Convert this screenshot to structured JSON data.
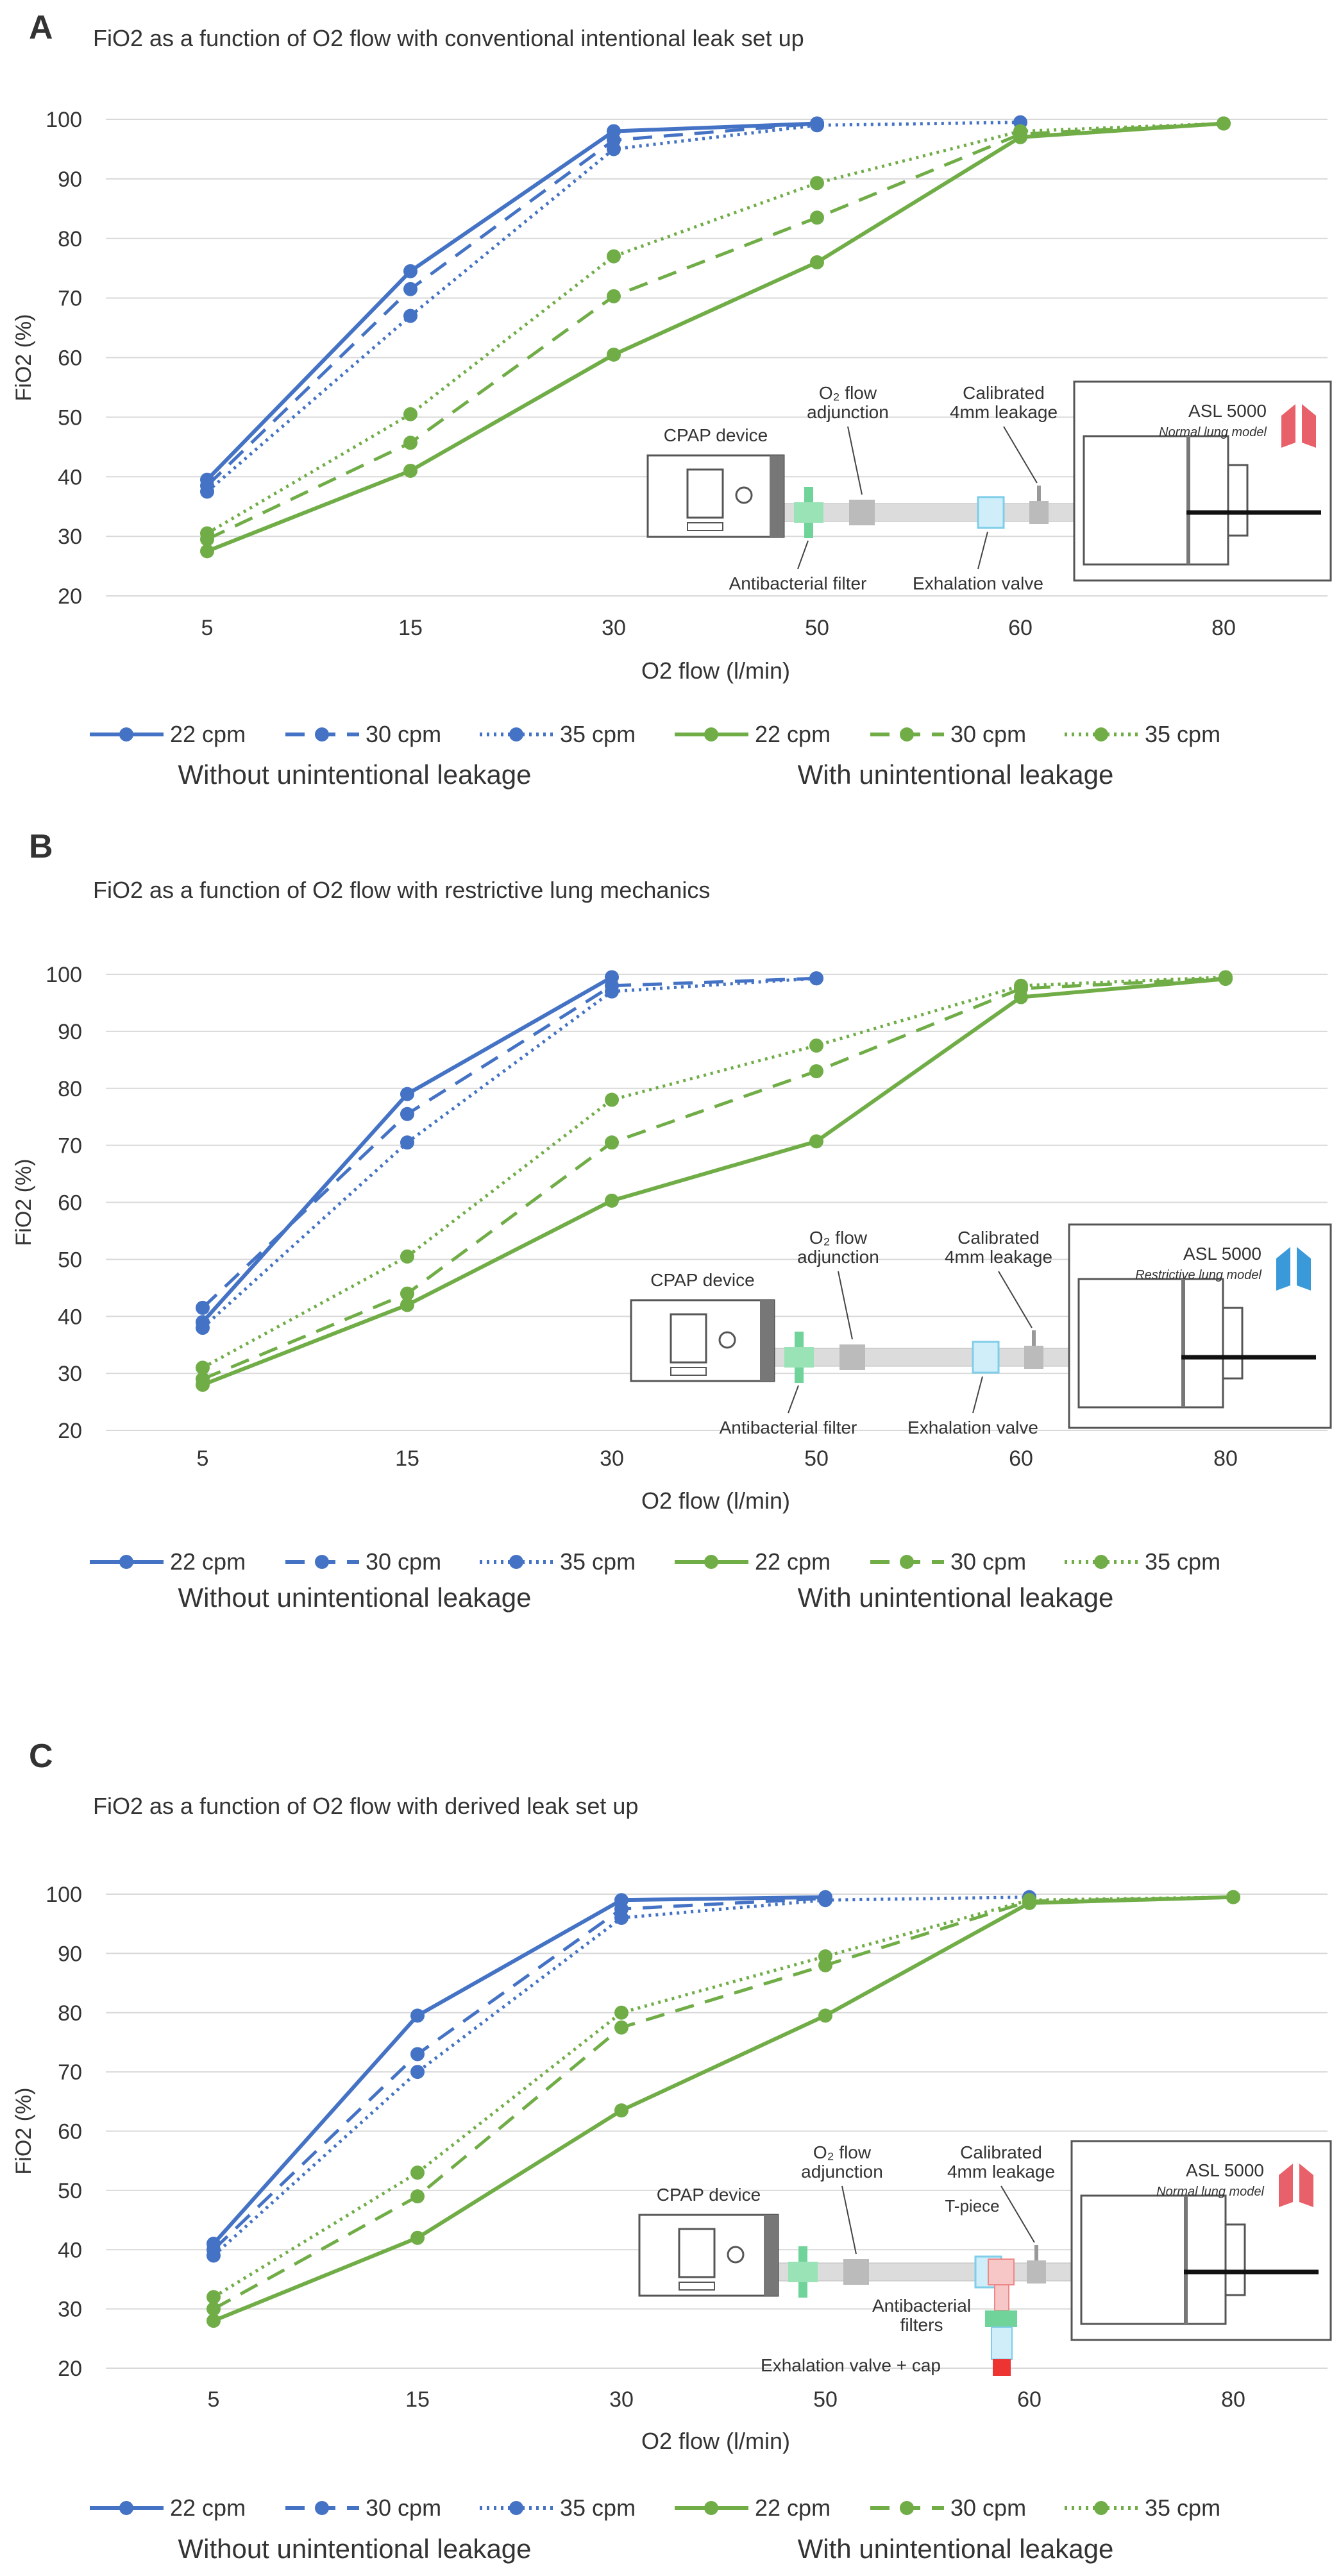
{
  "colors": {
    "without_leak": "#4472C4",
    "with_leak": "#70AD47",
    "grid": "#d9d9d9",
    "without_label": "#4a72b8",
    "with_label": "#70ad47"
  },
  "chart_data": [
    {
      "type": "line",
      "panel_label": "A",
      "title": "FiO2 as a function of O2 flow with conventional intentional leak set up",
      "xlabel": "O2 flow (l/min)",
      "ylabel": "FiO2 (%)",
      "categories": [
        "5",
        "15",
        "30",
        "50",
        "60",
        "80"
      ],
      "ylim": [
        20,
        100
      ],
      "yticks": [
        "20",
        "30",
        "40",
        "50",
        "60",
        "70",
        "80",
        "90",
        "100"
      ],
      "grid": true,
      "legend": "bottom",
      "series": [
        {
          "name": "22 cpm",
          "group": "without",
          "style": "solid",
          "values": [
            39.5,
            74.5,
            98,
            99.3,
            null,
            null
          ]
        },
        {
          "name": "30 cpm",
          "group": "without",
          "style": "dashed",
          "values": [
            38.5,
            71.5,
            96.5,
            99.3,
            null,
            null
          ]
        },
        {
          "name": "35 cpm",
          "group": "without",
          "style": "dotted",
          "values": [
            37.5,
            67,
            95,
            99,
            99.5,
            null
          ]
        },
        {
          "name": "22 cpm",
          "group": "with",
          "style": "solid",
          "values": [
            27.5,
            41,
            60.5,
            76,
            97,
            99.3
          ]
        },
        {
          "name": "30 cpm",
          "group": "with",
          "style": "dashed",
          "values": [
            29.5,
            45.7,
            70.3,
            83.5,
            97.5,
            99.3
          ]
        },
        {
          "name": "35 cpm",
          "group": "with",
          "style": "dotted",
          "values": [
            30.5,
            50.5,
            77,
            89.3,
            98,
            99.3
          ]
        }
      ],
      "groups": {
        "without": "Without unintentional leakage",
        "with": "With unintentional leakage"
      },
      "diagram": {
        "cpap": "CPAP device",
        "o2_line1": "O₂ flow",
        "o2_line2": "adjunction",
        "leak_line1": "Calibrated",
        "leak_line2": "4mm leakage",
        "filter": "Antibacterial filter",
        "valve": "Exhalation valve",
        "asl": "ASL 5000",
        "model": "Normal lung model",
        "lung_color": "#e8606a"
      }
    },
    {
      "type": "line",
      "panel_label": "B",
      "title": "FiO2 as a function of O2 flow with restrictive lung mechanics",
      "xlabel": "O2 flow (l/min)",
      "ylabel": "FiO2 (%)",
      "categories": [
        "5",
        "15",
        "30",
        "50",
        "60",
        "80"
      ],
      "ylim": [
        20,
        100
      ],
      "yticks": [
        "20",
        "30",
        "40",
        "50",
        "60",
        "70",
        "80",
        "90",
        "100"
      ],
      "grid": true,
      "legend": "bottom",
      "series": [
        {
          "name": "22 cpm",
          "group": "without",
          "style": "solid",
          "values": [
            39,
            79,
            99.5,
            null,
            null,
            null
          ]
        },
        {
          "name": "30 cpm",
          "group": "without",
          "style": "dashed",
          "values": [
            41.5,
            75.5,
            98,
            99.3,
            null,
            null
          ]
        },
        {
          "name": "35 cpm",
          "group": "without",
          "style": "dotted",
          "values": [
            38,
            70.5,
            97,
            99.3,
            null,
            null
          ]
        },
        {
          "name": "22 cpm",
          "group": "with",
          "style": "solid",
          "values": [
            28,
            42,
            60.3,
            70.7,
            96,
            99.2
          ]
        },
        {
          "name": "30 cpm",
          "group": "with",
          "style": "dashed",
          "values": [
            29,
            44,
            70.5,
            83,
            97.5,
            99.3
          ]
        },
        {
          "name": "35 cpm",
          "group": "with",
          "style": "dotted",
          "values": [
            31,
            50.5,
            78,
            87.5,
            98,
            99.5
          ]
        }
      ],
      "groups": {
        "without": "Without unintentional leakage",
        "with": "With unintentional leakage"
      },
      "diagram": {
        "cpap": "CPAP device",
        "o2_line1": "O₂ flow",
        "o2_line2": "adjunction",
        "leak_line1": "Calibrated",
        "leak_line2": "4mm leakage",
        "filter": "Antibacterial filter",
        "valve": "Exhalation valve",
        "asl": "ASL 5000",
        "model": "Restrictive lung model",
        "lung_color": "#3a9ad9"
      }
    },
    {
      "type": "line",
      "panel_label": "C",
      "title": "FiO2 as a function of O2 flow with derived leak set up",
      "xlabel": "O2 flow (l/min)",
      "ylabel": "FiO2 (%)",
      "categories": [
        "5",
        "15",
        "30",
        "50",
        "60",
        "80"
      ],
      "ylim": [
        20,
        100
      ],
      "yticks": [
        "20",
        "30",
        "40",
        "50",
        "60",
        "70",
        "80",
        "90",
        "100"
      ],
      "grid": true,
      "legend": "bottom",
      "series": [
        {
          "name": "22 cpm",
          "group": "without",
          "style": "solid",
          "values": [
            41,
            79.5,
            99,
            99.5,
            null,
            null
          ]
        },
        {
          "name": "30 cpm",
          "group": "without",
          "style": "dashed",
          "values": [
            40,
            73,
            97.5,
            99.3,
            null,
            null
          ]
        },
        {
          "name": "35 cpm",
          "group": "without",
          "style": "dotted",
          "values": [
            39,
            70,
            96,
            99,
            99.5,
            null
          ]
        },
        {
          "name": "22 cpm",
          "group": "with",
          "style": "solid",
          "values": [
            28,
            42,
            63.5,
            79.5,
            98.5,
            99.5
          ]
        },
        {
          "name": "30 cpm",
          "group": "with",
          "style": "dashed",
          "values": [
            30,
            49,
            77.5,
            88,
            98.8,
            99.5
          ]
        },
        {
          "name": "35 cpm",
          "group": "with",
          "style": "dotted",
          "values": [
            32,
            53,
            80,
            89.5,
            99,
            99.5
          ]
        }
      ],
      "groups": {
        "without": "Without unintentional leakage",
        "with": "With unintentional leakage"
      },
      "diagram": {
        "cpap": "CPAP device",
        "o2_line1": "O₂ flow",
        "o2_line2": "adjunction",
        "leak_line1": "Calibrated",
        "leak_line2": "4mm leakage",
        "tpiece": "T-piece",
        "filter_line1": "Antibacterial",
        "filter_line2": "filters",
        "valve": "Exhalation valve + cap",
        "asl": "ASL 5000",
        "model": "Normal lung model",
        "lung_color": "#e8606a"
      }
    }
  ]
}
